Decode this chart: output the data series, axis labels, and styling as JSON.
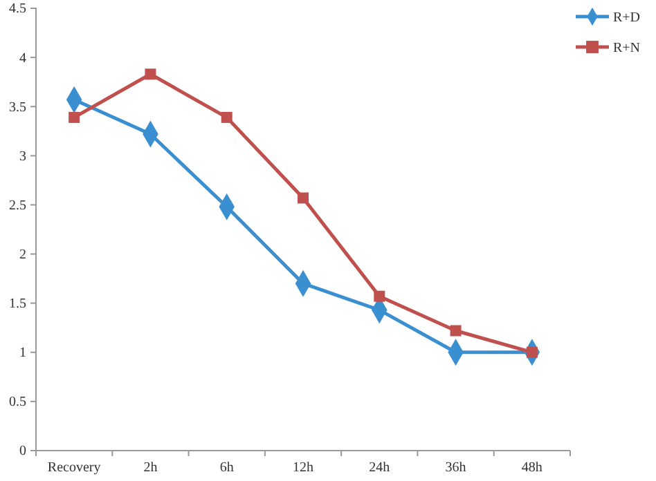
{
  "chart_data": {
    "type": "line",
    "categories": [
      "Recovery",
      "2h",
      "6h",
      "12h",
      "24h",
      "36h",
      "48h"
    ],
    "series": [
      {
        "name": "R+D",
        "color": "#3a8fd0",
        "marker": "diamond",
        "values": [
          3.57,
          3.22,
          2.48,
          1.7,
          1.43,
          1.0,
          1.0
        ]
      },
      {
        "name": "R+N",
        "color": "#c0504d",
        "marker": "square",
        "values": [
          3.39,
          3.83,
          3.39,
          2.57,
          1.57,
          1.22,
          1.0
        ]
      }
    ],
    "ylim": [
      0,
      4.5
    ],
    "yticks": [
      0,
      0.5,
      1,
      1.5,
      2,
      2.5,
      3,
      3.5,
      4,
      4.5
    ],
    "grid": false,
    "legend": "top right"
  }
}
